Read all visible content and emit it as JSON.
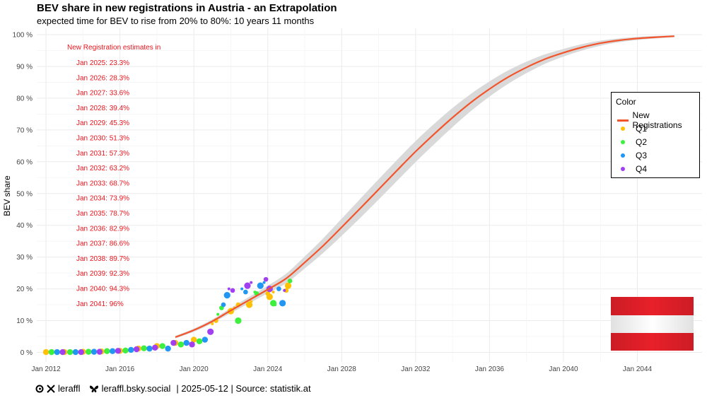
{
  "title": "BEV share in new registrations in Austria - an Extrapolation",
  "subtitle": "expected time for BEV to rise from 20% to 80%: 10 years 11 months",
  "footer": {
    "handle": "leraffl",
    "bsky": "leraffl.bsky.social",
    "date_source": "| 2025-05-12 | Source: statistik.at"
  },
  "legend": {
    "title": "Color",
    "items": [
      {
        "label": "New Registrations",
        "color": "#f2552c",
        "kind": "line"
      },
      {
        "label": "Q1",
        "color": "#ffc107",
        "kind": "dot"
      },
      {
        "label": "Q2",
        "color": "#3ef03e",
        "kind": "dot"
      },
      {
        "label": "Q3",
        "color": "#2196f3",
        "kind": "dot"
      },
      {
        "label": "Q4",
        "color": "#a040f0",
        "kind": "dot"
      }
    ]
  },
  "annotations": {
    "header": "New Registration estimates in",
    "lines": [
      "Jan 2025: 23.3%",
      "Jan 2026: 28.3%",
      "Jan 2027: 33.6%",
      "Jan 2028: 39.4%",
      "Jan 2029: 45.3%",
      "Jan 2030: 51.3%",
      "Jan 2031: 57.3%",
      "Jan 2032: 63.2%",
      "Jan 2033: 68.7%",
      "Jan 2034: 73.9%",
      "Jan 2035: 78.7%",
      "Jan 2036: 82.9%",
      "Jan 2037: 86.6%",
      "Jan 2038: 89.7%",
      "Jan 2039: 92.3%",
      "Jan 2040: 94.3%",
      "Jan 2041: 96%"
    ],
    "color": "#e8141c"
  },
  "chart_data": {
    "type": "line",
    "ylabel": "BEV share",
    "xlabel": "",
    "xlim": [
      2011.5,
      2047.5
    ],
    "ylim": [
      -3,
      102
    ],
    "x_ticks": [
      2012,
      2016,
      2020,
      2024,
      2028,
      2032,
      2036,
      2040,
      2044
    ],
    "x_tick_labels": [
      "Jan 2012",
      "Jan 2016",
      "Jan 2020",
      "Jan 2024",
      "Jan 2028",
      "Jan 2032",
      "Jan 2036",
      "Jan 2040",
      "Jan 2044"
    ],
    "y_ticks": [
      0,
      10,
      20,
      30,
      40,
      50,
      60,
      70,
      80,
      90,
      100
    ],
    "y_tick_labels": [
      "0 %",
      "10 %",
      "20 %",
      "30 %",
      "40 %",
      "50 %",
      "60 %",
      "70 %",
      "80 %",
      "90 %",
      "100 %"
    ],
    "grid": true,
    "legend_position": "right",
    "curve": {
      "name": "New Registrations",
      "color": "#f2552c",
      "x": [
        2019,
        2020,
        2021,
        2022,
        2023,
        2024,
        2025,
        2026,
        2027,
        2028,
        2029,
        2030,
        2031,
        2032,
        2033,
        2034,
        2035,
        2036,
        2037,
        2038,
        2039,
        2040,
        2041,
        2042,
        2043,
        2044,
        2045,
        2046
      ],
      "y": [
        4.8,
        7.0,
        9.8,
        13.2,
        16.5,
        19.8,
        23.3,
        28.3,
        33.6,
        39.4,
        45.3,
        51.3,
        57.3,
        63.2,
        68.7,
        73.9,
        78.7,
        82.9,
        86.6,
        89.7,
        92.3,
        94.3,
        96.0,
        97.3,
        98.2,
        98.8,
        99.2,
        99.5
      ],
      "band_halfwidth": [
        0.4,
        0.5,
        0.6,
        0.8,
        1.0,
        1.2,
        1.5,
        1.9,
        2.3,
        2.7,
        3.0,
        3.2,
        3.3,
        3.3,
        3.2,
        3.0,
        2.7,
        2.4,
        2.1,
        1.8,
        1.5,
        1.2,
        1.0,
        0.8,
        0.6,
        0.5,
        0.4,
        0.3
      ]
    },
    "series": [
      {
        "name": "Q1",
        "color": "#ffc107",
        "points": [
          [
            2012.0,
            0.1
          ],
          [
            2013.0,
            0.1
          ],
          [
            2014.0,
            0.2
          ],
          [
            2015.0,
            0.3
          ],
          [
            2016.0,
            0.5
          ],
          [
            2017.0,
            1.2
          ],
          [
            2018.0,
            2.0
          ],
          [
            2019.0,
            3.0
          ],
          [
            2020.0,
            4.0
          ],
          [
            2021.0,
            9.0
          ],
          [
            2021.2,
            10.0
          ],
          [
            2022.0,
            13.0
          ],
          [
            2022.2,
            14.0
          ],
          [
            2022.4,
            15.0
          ],
          [
            2023.0,
            15.0
          ],
          [
            2023.1,
            16.0
          ],
          [
            2024.0,
            18.5
          ],
          [
            2024.1,
            17.5
          ],
          [
            2024.3,
            19.0
          ],
          [
            2025.0,
            19.5
          ],
          [
            2025.1,
            21.0
          ]
        ]
      },
      {
        "name": "Q2",
        "color": "#3ef03e",
        "points": [
          [
            2012.3,
            0.1
          ],
          [
            2013.3,
            0.1
          ],
          [
            2014.3,
            0.2
          ],
          [
            2015.3,
            0.4
          ],
          [
            2016.3,
            0.6
          ],
          [
            2017.3,
            1.3
          ],
          [
            2018.3,
            2.0
          ],
          [
            2019.3,
            2.5
          ],
          [
            2020.3,
            3.5
          ],
          [
            2021.3,
            12.0
          ],
          [
            2021.5,
            14.0
          ],
          [
            2022.4,
            10.0
          ],
          [
            2023.3,
            19.0
          ],
          [
            2023.4,
            18.5
          ],
          [
            2024.3,
            15.5
          ],
          [
            2024.4,
            15.0
          ],
          [
            2025.2,
            22.5
          ]
        ]
      },
      {
        "name": "Q3",
        "color": "#2196f3",
        "points": [
          [
            2012.6,
            0.1
          ],
          [
            2013.6,
            0.1
          ],
          [
            2014.6,
            0.2
          ],
          [
            2015.6,
            0.4
          ],
          [
            2016.6,
            0.8
          ],
          [
            2017.6,
            1.2
          ],
          [
            2018.6,
            1.2
          ],
          [
            2019.6,
            3.0
          ],
          [
            2020.6,
            4.0
          ],
          [
            2020.9,
            7.0
          ],
          [
            2021.6,
            15.0
          ],
          [
            2021.8,
            18.0
          ],
          [
            2022.6,
            20.0
          ],
          [
            2022.8,
            19.0
          ],
          [
            2023.6,
            21.0
          ],
          [
            2023.8,
            22.0
          ],
          [
            2024.6,
            20.0
          ],
          [
            2024.8,
            15.5
          ]
        ]
      },
      {
        "name": "Q4",
        "color": "#a040f0",
        "points": [
          [
            2012.9,
            0.1
          ],
          [
            2013.9,
            0.1
          ],
          [
            2014.9,
            0.2
          ],
          [
            2015.9,
            0.5
          ],
          [
            2016.9,
            1.0
          ],
          [
            2017.9,
            1.5
          ],
          [
            2018.9,
            3.0
          ],
          [
            2019.9,
            2.5
          ],
          [
            2020.9,
            6.5
          ],
          [
            2021.9,
            20.0
          ],
          [
            2022.1,
            19.5
          ],
          [
            2022.9,
            21.0
          ],
          [
            2023.1,
            22.0
          ],
          [
            2023.9,
            23.0
          ],
          [
            2024.1,
            20.0
          ],
          [
            2024.9,
            19.5
          ]
        ]
      }
    ]
  },
  "flag": {
    "top": "#e8202a",
    "middle": "#ffffff",
    "bottom": "#e8202a",
    "name": "austria-flag"
  }
}
